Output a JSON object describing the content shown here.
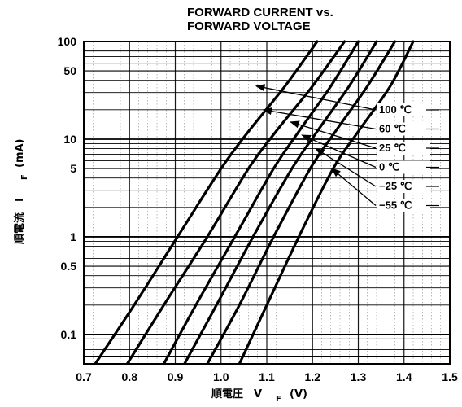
{
  "chart_data": {
    "type": "line",
    "title_line1": "FORWARD CURRENT vs.",
    "title_line2": "FORWARD VOLTAGE",
    "xlabel": "順電圧　V",
    "xlabel_sub": "F",
    "xlabel_unit": "(V)",
    "ylabel": "順電流　I",
    "ylabel_sub": "F",
    "ylabel_unit": "(mA)",
    "x_scale": "linear",
    "y_scale": "log",
    "xlim": [
      0.7,
      1.5
    ],
    "ylim": [
      0.05,
      100
    ],
    "x_ticks": [
      "0.7",
      "0.8",
      "0.9",
      "1.0",
      "1.1",
      "1.2",
      "1.3",
      "1.4",
      "1.5"
    ],
    "x_tick_values": [
      0.7,
      0.8,
      0.9,
      1.0,
      1.1,
      1.2,
      1.3,
      1.4,
      1.5
    ],
    "y_ticks": [
      "100",
      "50",
      "10",
      "5",
      "1",
      "0.5",
      "0.1"
    ],
    "y_tick_values": [
      100,
      50,
      10,
      5,
      1,
      0.5,
      0.1
    ],
    "grid": true,
    "series": [
      {
        "name": "100 ℃",
        "points": [
          [
            0.725,
            0.05
          ],
          [
            0.81,
            0.2
          ],
          [
            0.905,
            1
          ],
          [
            1.0,
            5
          ],
          [
            1.06,
            12
          ],
          [
            1.14,
            35
          ],
          [
            1.21,
            100
          ]
        ]
      },
      {
        "name": "60 ℃",
        "points": [
          [
            0.795,
            0.05
          ],
          [
            0.875,
            0.2
          ],
          [
            0.97,
            1
          ],
          [
            1.06,
            5
          ],
          [
            1.12,
            12
          ],
          [
            1.2,
            35
          ],
          [
            1.27,
            100
          ]
        ]
      },
      {
        "name": "25 ℃",
        "points": [
          [
            0.875,
            0.05
          ],
          [
            0.945,
            0.2
          ],
          [
            1.03,
            1
          ],
          [
            1.115,
            5
          ],
          [
            1.17,
            12
          ],
          [
            1.24,
            35
          ],
          [
            1.3,
            100
          ]
        ]
      },
      {
        "name": "0 ℃",
        "points": [
          [
            0.92,
            0.05
          ],
          [
            0.99,
            0.2
          ],
          [
            1.07,
            1
          ],
          [
            1.155,
            5
          ],
          [
            1.21,
            12
          ],
          [
            1.28,
            35
          ],
          [
            1.34,
            100
          ]
        ]
      },
      {
        "name": "−25 ℃",
        "points": [
          [
            0.97,
            0.05
          ],
          [
            1.04,
            0.2
          ],
          [
            1.115,
            1
          ],
          [
            1.195,
            5
          ],
          [
            1.25,
            12
          ],
          [
            1.32,
            35
          ],
          [
            1.38,
            100
          ]
        ]
      },
      {
        "name": "−55 ℃",
        "points": [
          [
            1.04,
            0.05
          ],
          [
            1.1,
            0.2
          ],
          [
            1.17,
            1
          ],
          [
            1.245,
            5
          ],
          [
            1.3,
            12
          ],
          [
            1.37,
            35
          ],
          [
            1.42,
            100
          ]
        ]
      }
    ],
    "legend_placement": "right",
    "legend_arrow_targets": [
      [
        1.07,
        35
      ],
      [
        1.085,
        20
      ],
      [
        1.145,
        15
      ],
      [
        1.17,
        11
      ],
      [
        1.2,
        8
      ],
      [
        1.235,
        5
      ]
    ]
  }
}
